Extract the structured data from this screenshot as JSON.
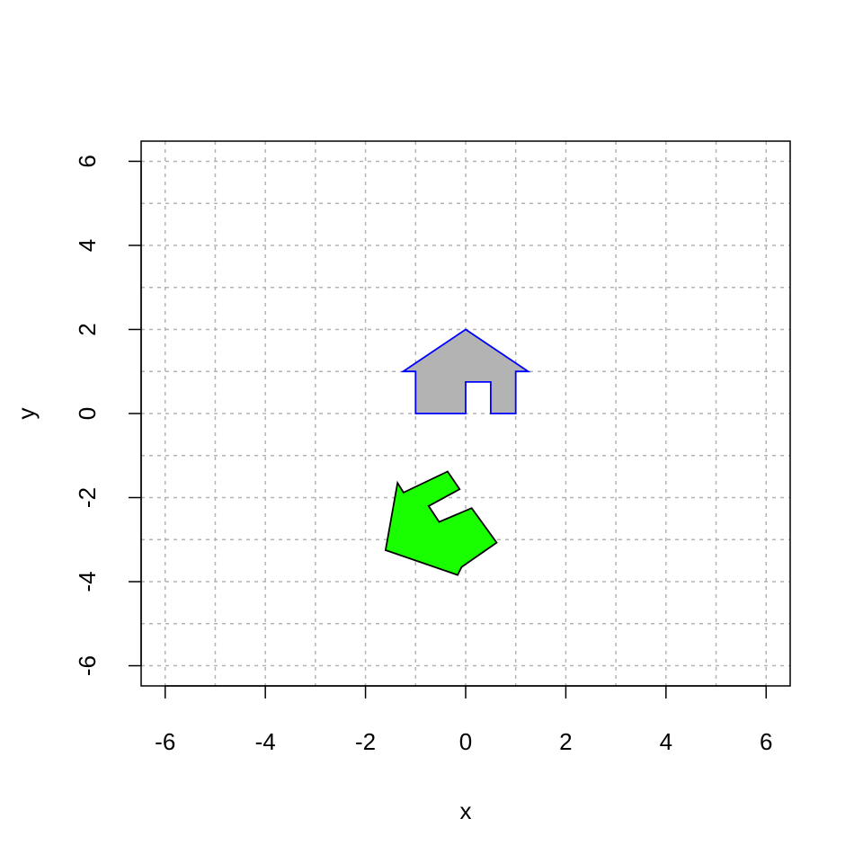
{
  "chart_data": {
    "type": "scatter",
    "xlabel": "x",
    "ylabel": "y",
    "xlim": [
      -6.48,
      6.48
    ],
    "ylim": [
      -6.48,
      6.48
    ],
    "x_ticks": [
      -6,
      -4,
      -2,
      0,
      2,
      4,
      6
    ],
    "y_ticks": [
      -6,
      -4,
      -2,
      0,
      2,
      4,
      6
    ],
    "grid": true,
    "grid_color": "#b3b3b3",
    "grid_step": 1,
    "series": [
      {
        "shape": "polygon",
        "fill": "#b3b3b3",
        "stroke": "#0000ff",
        "points": [
          [
            -1,
            0
          ],
          [
            0,
            0
          ],
          [
            0,
            0.75
          ],
          [
            0.5,
            0.75
          ],
          [
            0.5,
            0
          ],
          [
            1,
            0
          ],
          [
            1,
            1
          ],
          [
            1.25,
            1
          ],
          [
            0,
            2
          ],
          [
            -1.25,
            1
          ],
          [
            -1,
            1
          ]
        ]
      },
      {
        "shape": "polygon",
        "fill": "#1aff00",
        "stroke": "#000000",
        "points": [
          [
            -0.16,
            -3.84
          ],
          [
            -1.6,
            -3.25
          ],
          [
            -1.36,
            -1.65
          ],
          [
            -1.24,
            -1.88
          ],
          [
            -0.36,
            -1.38
          ],
          [
            -0.12,
            -1.8
          ],
          [
            -0.74,
            -2.2
          ],
          [
            -0.53,
            -2.58
          ],
          [
            0.12,
            -2.25
          ],
          [
            0.62,
            -3.07
          ],
          [
            -0.08,
            -3.65
          ]
        ]
      }
    ]
  }
}
